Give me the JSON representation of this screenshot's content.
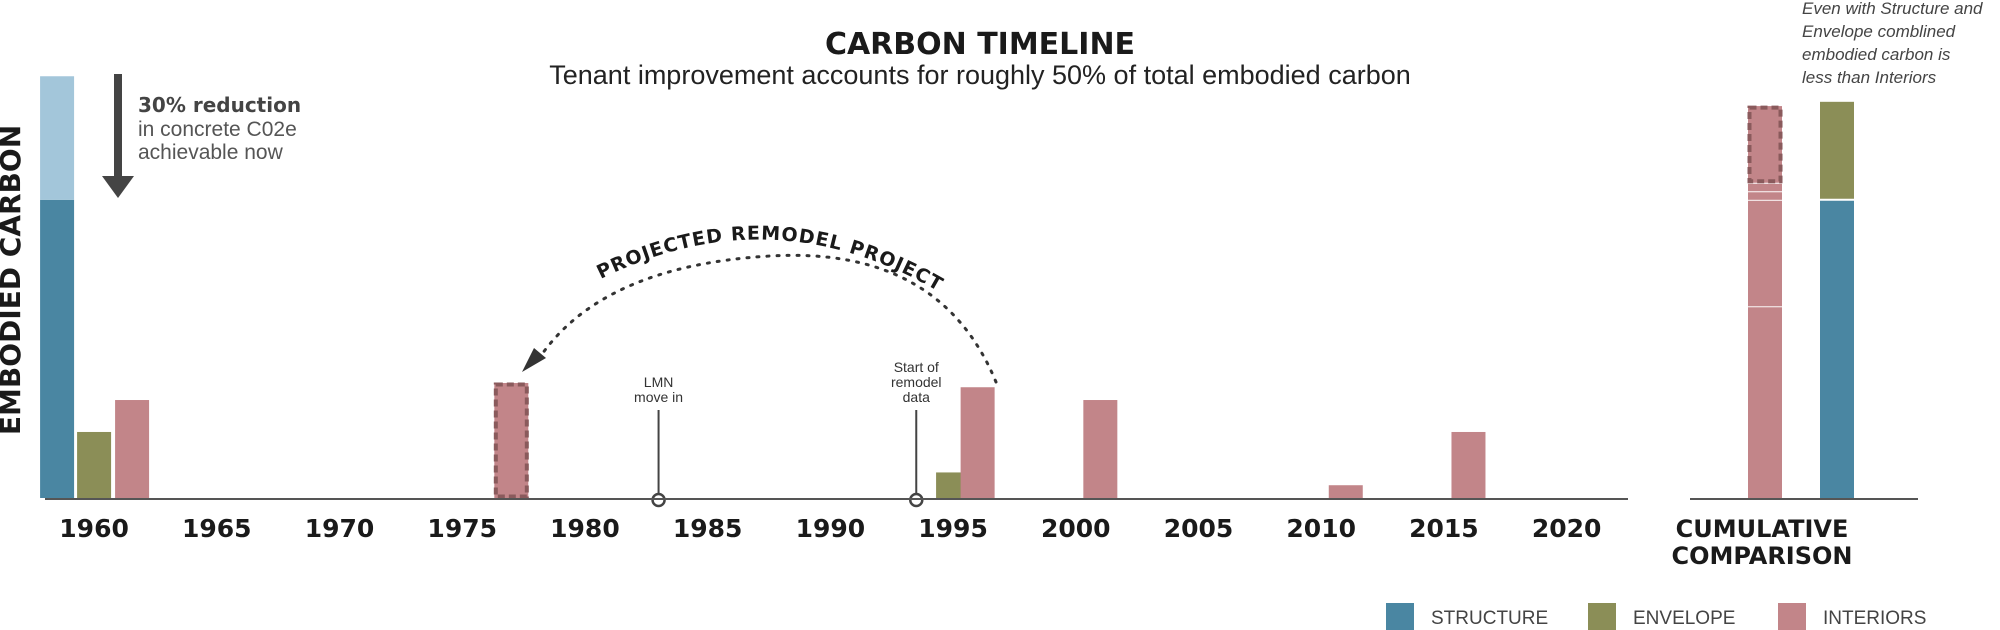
{
  "chart_data": {
    "type": "bar",
    "title": "CARBON TIMELINE",
    "subtitle": "Tenant improvement accounts for roughly 50% of total embodied carbon",
    "ylabel": "EMBODIED CARBON",
    "xlabel": "",
    "x_tick_labels": [
      "1960",
      "1965",
      "1970",
      "1975",
      "1980",
      "1985",
      "1990",
      "1995",
      "2000",
      "2005",
      "2010",
      "2015",
      "2020"
    ],
    "x_ticks": [
      1960,
      1965,
      1970,
      1975,
      1980,
      1985,
      1990,
      1995,
      2000,
      2005,
      2010,
      2015,
      2020
    ],
    "xlim": [
      1958,
      2022.5
    ],
    "ylim": [
      0,
      100
    ],
    "grid": false,
    "legend_position": "bottom-right",
    "colors": {
      "structure": "#4a86a2",
      "structure_reduction": "#a3c6da",
      "envelope": "#8b8e57",
      "interiors": "#c28589",
      "projected_outline": "#8a5a5c",
      "axis": "#555555",
      "annotation": "#444444"
    },
    "series": [
      {
        "name": "STRUCTURE",
        "color": "#4a86a2",
        "points": [
          {
            "x": 1960,
            "y": 70,
            "reducible": 29
          }
        ]
      },
      {
        "name": "ENVELOPE",
        "color": "#8b8e57",
        "points": [
          {
            "x": 1960,
            "y": 15.5
          },
          {
            "x": 1995,
            "y": 6
          }
        ]
      },
      {
        "name": "INTERIORS",
        "color": "#c28589",
        "points": [
          {
            "x": 1960,
            "y": 23
          },
          {
            "x": 1977,
            "y": 27,
            "projected": true
          },
          {
            "x": 1996,
            "y": 26
          },
          {
            "x": 2001,
            "y": 23
          },
          {
            "x": 2011,
            "y": 3
          },
          {
            "x": 2016,
            "y": 15.5
          }
        ]
      }
    ],
    "event_markers": [
      {
        "x": 1983,
        "label_lines": [
          "LMN",
          "move in"
        ]
      },
      {
        "x": 1993.5,
        "label_lines": [
          "Start of",
          "remodel",
          "data"
        ]
      }
    ],
    "annotations": {
      "reduction_bold": "30% reduction",
      "reduction_lines": [
        "in concrete C02e",
        "achievable now"
      ],
      "arc_label": "PROJECTED REMODEL PROJECT",
      "note_lines": [
        "Even with Structure and",
        "Envelope comblined",
        "embodied carbon is",
        "less than Interiors"
      ]
    },
    "cumulative": {
      "title_lines": [
        "CUMULATIVE",
        "COMPARISON"
      ],
      "interiors": {
        "segments": [
          45,
          25,
          2,
          2,
          18
        ],
        "projected_segment_index": 4
      },
      "structure_envelope": {
        "segments": [
          {
            "name": "STRUCTURE",
            "value": 70
          },
          {
            "name": "ENVELOPE",
            "value": 23
          }
        ]
      }
    }
  },
  "legend": [
    {
      "label": "STRUCTURE",
      "color": "#4a86a2"
    },
    {
      "label": "ENVELOPE",
      "color": "#8b8e57"
    },
    {
      "label": "INTERIORS",
      "color": "#c28589"
    }
  ]
}
